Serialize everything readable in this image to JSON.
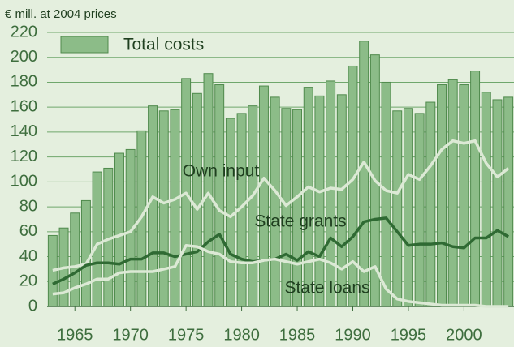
{
  "chart_data": {
    "type": "bar_line",
    "ylabel": "€ mill. at 2004 prices",
    "x": [
      1963,
      1964,
      1965,
      1966,
      1967,
      1968,
      1969,
      1970,
      1971,
      1972,
      1973,
      1974,
      1975,
      1976,
      1977,
      1978,
      1979,
      1980,
      1981,
      1982,
      1983,
      1984,
      1985,
      1986,
      1987,
      1988,
      1989,
      1990,
      1991,
      1992,
      1993,
      1994,
      1995,
      1996,
      1997,
      1998,
      1999,
      2000,
      2001,
      2002,
      2003,
      2004
    ],
    "xlim": [
      1962.5,
      2004.5
    ],
    "xticks": [
      1965,
      1970,
      1975,
      1980,
      1985,
      1990,
      1995,
      2000
    ],
    "ylim": [
      0,
      220
    ],
    "yticks": [
      0,
      20,
      40,
      60,
      80,
      100,
      120,
      140,
      160,
      180,
      200,
      220
    ],
    "grid": true,
    "series": [
      {
        "name": "Total costs",
        "kind": "bar",
        "color": "#8cbc88",
        "values": [
          57,
          63,
          75,
          85,
          108,
          111,
          123,
          126,
          141,
          161,
          157,
          158,
          183,
          171,
          187,
          178,
          151,
          155,
          161,
          177,
          168,
          159,
          158,
          176,
          169,
          181,
          170,
          193,
          213,
          202,
          180,
          157,
          159,
          155,
          164,
          178,
          182,
          178,
          189,
          172,
          166,
          168
        ]
      },
      {
        "name": "Own input",
        "kind": "line",
        "color": "#dce9d5",
        "values": [
          29,
          31,
          32,
          34,
          50,
          54,
          57,
          60,
          72,
          88,
          83,
          86,
          91,
          78,
          91,
          77,
          72,
          80,
          89,
          103,
          93,
          81,
          88,
          96,
          92,
          95,
          94,
          102,
          116,
          101,
          93,
          91,
          106,
          102,
          113,
          126,
          133,
          131,
          133,
          115,
          104,
          111
        ]
      },
      {
        "name": "State grants",
        "kind": "line",
        "color": "#2f6a33",
        "values": [
          18,
          22,
          27,
          33,
          35,
          35,
          34,
          38,
          38,
          43,
          43,
          40,
          42,
          44,
          52,
          58,
          42,
          38,
          36,
          37,
          38,
          42,
          37,
          44,
          40,
          55,
          48,
          56,
          68,
          70,
          71,
          60,
          49,
          50,
          50,
          51,
          48,
          47,
          55,
          55,
          61,
          56
        ]
      },
      {
        "name": "State loans",
        "kind": "line",
        "color": "#dce9d5",
        "values": [
          10,
          11,
          15,
          18,
          22,
          22,
          27,
          28,
          28,
          28,
          30,
          32,
          49,
          48,
          44,
          42,
          36,
          35,
          35,
          37,
          38,
          36,
          34,
          36,
          38,
          35,
          30,
          36,
          28,
          32,
          14,
          6,
          4,
          3,
          2,
          1,
          1,
          1,
          1,
          0,
          0,
          0
        ]
      }
    ]
  }
}
